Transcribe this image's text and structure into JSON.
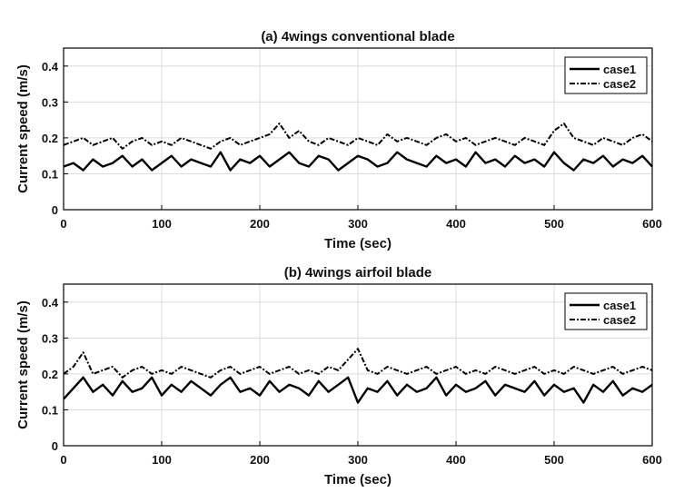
{
  "chart_data": [
    {
      "type": "line",
      "title": "(a) 4wings conventional blade",
      "xlabel": "Time (sec)",
      "ylabel": "Current speed (m/s)",
      "xlim": [
        0,
        600
      ],
      "ylim": [
        0,
        0.45
      ],
      "xticks": [
        "0",
        "100",
        "200",
        "300",
        "400",
        "500",
        "600"
      ],
      "yticks": [
        "0",
        "0.1",
        "0.2",
        "0.3",
        "0.4"
      ],
      "grid": true,
      "legend_position": "top-right",
      "series": [
        {
          "name": "case1",
          "style": "solid",
          "color": "#000000",
          "x": [
            0,
            10,
            20,
            30,
            40,
            50,
            60,
            70,
            80,
            90,
            100,
            110,
            120,
            130,
            140,
            150,
            160,
            170,
            180,
            190,
            200,
            210,
            220,
            230,
            240,
            250,
            260,
            270,
            280,
            290,
            300,
            310,
            320,
            330,
            340,
            350,
            360,
            370,
            380,
            390,
            400,
            410,
            420,
            430,
            440,
            450,
            460,
            470,
            480,
            490,
            500,
            510,
            520,
            530,
            540,
            550,
            560,
            570,
            580,
            590,
            600
          ],
          "values": [
            0.12,
            0.13,
            0.11,
            0.14,
            0.12,
            0.13,
            0.15,
            0.12,
            0.14,
            0.11,
            0.13,
            0.15,
            0.12,
            0.14,
            0.13,
            0.12,
            0.16,
            0.11,
            0.14,
            0.13,
            0.15,
            0.12,
            0.14,
            0.16,
            0.13,
            0.12,
            0.15,
            0.14,
            0.11,
            0.13,
            0.15,
            0.14,
            0.12,
            0.13,
            0.16,
            0.14,
            0.13,
            0.12,
            0.15,
            0.13,
            0.14,
            0.12,
            0.16,
            0.13,
            0.14,
            0.12,
            0.15,
            0.13,
            0.14,
            0.12,
            0.16,
            0.13,
            0.11,
            0.14,
            0.13,
            0.15,
            0.12,
            0.14,
            0.13,
            0.15,
            0.12
          ]
        },
        {
          "name": "case2",
          "style": "dash-dot",
          "color": "#000000",
          "x": [
            0,
            10,
            20,
            30,
            40,
            50,
            60,
            70,
            80,
            90,
            100,
            110,
            120,
            130,
            140,
            150,
            160,
            170,
            180,
            190,
            200,
            210,
            220,
            230,
            240,
            250,
            260,
            270,
            280,
            290,
            300,
            310,
            320,
            330,
            340,
            350,
            360,
            370,
            380,
            390,
            400,
            410,
            420,
            430,
            440,
            450,
            460,
            470,
            480,
            490,
            500,
            510,
            520,
            530,
            540,
            550,
            560,
            570,
            580,
            590,
            600
          ],
          "values": [
            0.18,
            0.19,
            0.2,
            0.18,
            0.19,
            0.2,
            0.17,
            0.19,
            0.2,
            0.18,
            0.19,
            0.18,
            0.2,
            0.19,
            0.18,
            0.17,
            0.19,
            0.2,
            0.18,
            0.19,
            0.2,
            0.21,
            0.24,
            0.2,
            0.22,
            0.19,
            0.18,
            0.2,
            0.19,
            0.18,
            0.2,
            0.19,
            0.18,
            0.21,
            0.19,
            0.2,
            0.19,
            0.18,
            0.2,
            0.21,
            0.19,
            0.2,
            0.18,
            0.19,
            0.2,
            0.19,
            0.18,
            0.2,
            0.19,
            0.18,
            0.22,
            0.24,
            0.2,
            0.19,
            0.18,
            0.2,
            0.19,
            0.18,
            0.2,
            0.21,
            0.19
          ]
        }
      ]
    },
    {
      "type": "line",
      "title": "(b) 4wings airfoil blade",
      "xlabel": "Time (sec)",
      "ylabel": "Current speed (m/s)",
      "xlim": [
        0,
        600
      ],
      "ylim": [
        0,
        0.45
      ],
      "xticks": [
        "0",
        "100",
        "200",
        "300",
        "400",
        "500",
        "600"
      ],
      "yticks": [
        "0",
        "0.1",
        "0.2",
        "0.3",
        "0.4"
      ],
      "grid": true,
      "legend_position": "top-right",
      "series": [
        {
          "name": "case1",
          "style": "solid",
          "color": "#000000",
          "x": [
            0,
            10,
            20,
            30,
            40,
            50,
            60,
            70,
            80,
            90,
            100,
            110,
            120,
            130,
            140,
            150,
            160,
            170,
            180,
            190,
            200,
            210,
            220,
            230,
            240,
            250,
            260,
            270,
            280,
            290,
            300,
            310,
            320,
            330,
            340,
            350,
            360,
            370,
            380,
            390,
            400,
            410,
            420,
            430,
            440,
            450,
            460,
            470,
            480,
            490,
            500,
            510,
            520,
            530,
            540,
            550,
            560,
            570,
            580,
            590,
            600
          ],
          "values": [
            0.13,
            0.16,
            0.19,
            0.15,
            0.17,
            0.14,
            0.18,
            0.15,
            0.16,
            0.19,
            0.14,
            0.17,
            0.15,
            0.18,
            0.16,
            0.14,
            0.17,
            0.19,
            0.15,
            0.16,
            0.14,
            0.18,
            0.15,
            0.17,
            0.16,
            0.14,
            0.18,
            0.15,
            0.17,
            0.19,
            0.12,
            0.16,
            0.15,
            0.18,
            0.14,
            0.17,
            0.15,
            0.16,
            0.19,
            0.14,
            0.17,
            0.15,
            0.16,
            0.18,
            0.14,
            0.17,
            0.16,
            0.15,
            0.18,
            0.14,
            0.17,
            0.15,
            0.16,
            0.12,
            0.17,
            0.15,
            0.18,
            0.14,
            0.16,
            0.15,
            0.17
          ]
        },
        {
          "name": "case2",
          "style": "dash-dot",
          "color": "#000000",
          "x": [
            0,
            10,
            20,
            30,
            40,
            50,
            60,
            70,
            80,
            90,
            100,
            110,
            120,
            130,
            140,
            150,
            160,
            170,
            180,
            190,
            200,
            210,
            220,
            230,
            240,
            250,
            260,
            270,
            280,
            290,
            300,
            310,
            320,
            330,
            340,
            350,
            360,
            370,
            380,
            390,
            400,
            410,
            420,
            430,
            440,
            450,
            460,
            470,
            480,
            490,
            500,
            510,
            520,
            530,
            540,
            550,
            560,
            570,
            580,
            590,
            600
          ],
          "values": [
            0.2,
            0.22,
            0.26,
            0.2,
            0.21,
            0.22,
            0.19,
            0.21,
            0.22,
            0.2,
            0.21,
            0.2,
            0.22,
            0.21,
            0.2,
            0.19,
            0.21,
            0.22,
            0.2,
            0.21,
            0.22,
            0.2,
            0.21,
            0.22,
            0.2,
            0.21,
            0.2,
            0.22,
            0.21,
            0.24,
            0.27,
            0.21,
            0.2,
            0.22,
            0.21,
            0.2,
            0.21,
            0.22,
            0.2,
            0.21,
            0.22,
            0.2,
            0.21,
            0.2,
            0.22,
            0.21,
            0.2,
            0.21,
            0.22,
            0.2,
            0.21,
            0.2,
            0.22,
            0.21,
            0.2,
            0.21,
            0.22,
            0.2,
            0.21,
            0.22,
            0.21
          ]
        }
      ]
    }
  ]
}
